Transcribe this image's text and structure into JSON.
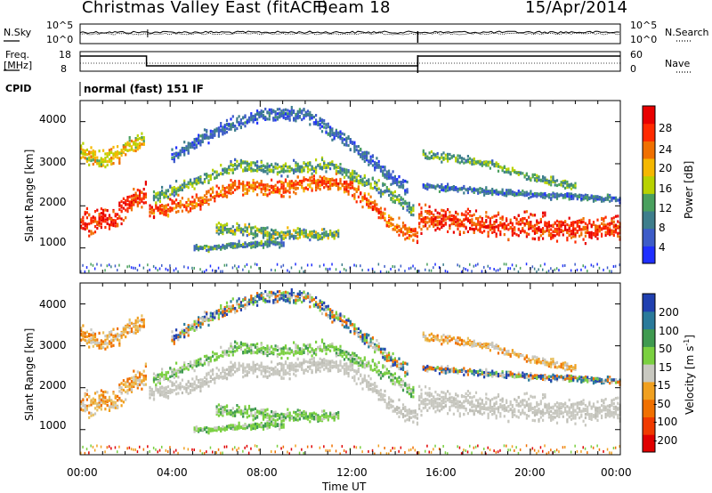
{
  "header": {
    "title": "Christmas Valley East (fitACF)",
    "beam": "Beam 18",
    "date": "15/Apr/2014"
  },
  "strips": {
    "nsky_label": "N.Sky",
    "nsearch_label": "N.Search",
    "nsky_ticks": [
      "10^5",
      "10^0"
    ],
    "nsearch_ticks": [
      "10^5",
      "10^0"
    ],
    "freq_label": "Freq.",
    "freq_unit": "[MHz]",
    "freq_ticks": [
      "18",
      "8"
    ],
    "nave_label": "Nave",
    "nave_ticks": [
      "60",
      "0"
    ],
    "cpid_label": "CPID",
    "cpid_text": "normal (fast) 151 IF"
  },
  "chart_data": [
    {
      "type": "heatmap",
      "name": "power",
      "ylabel": "Slant Range [km]",
      "yticks": [
        1000,
        2000,
        3000,
        4000
      ],
      "ylim": [
        400,
        4500
      ],
      "xlim": [
        0,
        24
      ],
      "colorbar": {
        "title": "Power [dB]",
        "ticks": [
          "4",
          "8",
          "12",
          "16",
          "20",
          "24",
          "28"
        ],
        "colors": [
          "#1f2fff",
          "#3d5cc8",
          "#3e7e8c",
          "#4aa05e",
          "#b8d200",
          "#f5b800",
          "#f07000",
          "#ff2a00",
          "#e80000"
        ]
      }
    },
    {
      "type": "heatmap",
      "name": "velocity",
      "ylabel": "Slant Range [km]",
      "yticks": [
        1000,
        2000,
        3000,
        4000
      ],
      "ylim": [
        400,
        4500
      ],
      "xlim": [
        0,
        24
      ],
      "colorbar": {
        "title": "Velocity [m s",
        "title_sup": "-1",
        "title_end": "]",
        "ticks": [
          "200",
          "100",
          "50",
          "15",
          "-15",
          "-50",
          "-100",
          "-200"
        ],
        "colors": [
          "#2040b0",
          "#2a7a9a",
          "#3f9a50",
          "#7ad040",
          "#c8c8c0",
          "#f0a020",
          "#f07000",
          "#f03a00",
          "#e00000"
        ]
      }
    }
  ],
  "xaxis": {
    "ticks": [
      "00:00",
      "04:00",
      "08:00",
      "12:00",
      "16:00",
      "20:00",
      "00:00"
    ],
    "label": "Time UT"
  }
}
